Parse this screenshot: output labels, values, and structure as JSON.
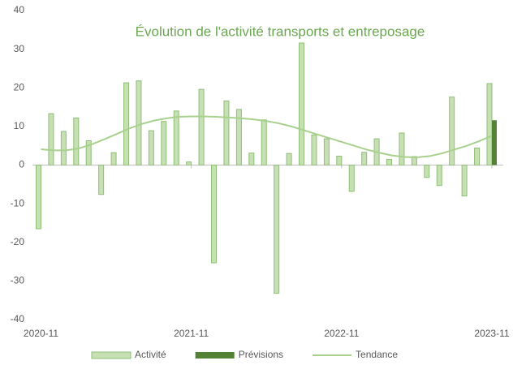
{
  "chart_data": {
    "type": "bar",
    "title": "Évolution de l'activité transports et entreposage",
    "categories": [
      "2020-11",
      null,
      null,
      null,
      null,
      null,
      null,
      null,
      null,
      null,
      null,
      null,
      "2021-11",
      null,
      null,
      null,
      null,
      null,
      null,
      null,
      null,
      null,
      null,
      null,
      "2022-11",
      null,
      null,
      null,
      null,
      null,
      null,
      null,
      null,
      null,
      null,
      null,
      "2023-11"
    ],
    "series": [
      {
        "name": "Activité",
        "type": "bar",
        "color": "#c6e0b4",
        "border": "#8fbf77",
        "values": [
          -16.5,
          13.3,
          8.7,
          12.2,
          6.3,
          -7.6,
          3.2,
          21.3,
          21.8,
          8.9,
          11.3,
          14.0,
          0.8,
          19.6,
          -25.3,
          16.6,
          14.4,
          3.1,
          11.7,
          -33.2,
          3.0,
          31.6,
          7.8,
          6.8,
          2.3,
          -6.8,
          3.3,
          6.8,
          1.5,
          8.3,
          2.2,
          -3.2,
          -5.3,
          17.6,
          -8.0,
          4.4,
          21.1
        ]
      },
      {
        "name": "Prévisions",
        "type": "bar",
        "color": "#548235",
        "values": [
          null,
          null,
          null,
          null,
          null,
          null,
          null,
          null,
          null,
          null,
          null,
          null,
          null,
          null,
          null,
          null,
          null,
          null,
          null,
          null,
          null,
          null,
          null,
          null,
          null,
          null,
          null,
          null,
          null,
          null,
          null,
          null,
          null,
          null,
          null,
          null,
          11.6
        ]
      },
      {
        "name": "Tendance",
        "type": "line",
        "color": "#a9d18e",
        "values": [
          4.1,
          3.8,
          3.8,
          4.3,
          5.3,
          6.6,
          8.0,
          9.4,
          10.6,
          11.5,
          12.1,
          12.5,
          12.6,
          12.6,
          12.5,
          12.3,
          12.1,
          11.8,
          11.4,
          10.8,
          10.0,
          9.0,
          8.0,
          7.0,
          6.0,
          5.0,
          4.0,
          3.2,
          2.5,
          2.1,
          2.0,
          2.3,
          3.0,
          4.0,
          5.0,
          6.2,
          7.6
        ]
      }
    ],
    "ylim": [
      -40,
      40
    ],
    "yticks": [
      -40,
      -30,
      -20,
      -10,
      0,
      10,
      20,
      30,
      40
    ],
    "grid": false,
    "legend": "bottom"
  }
}
